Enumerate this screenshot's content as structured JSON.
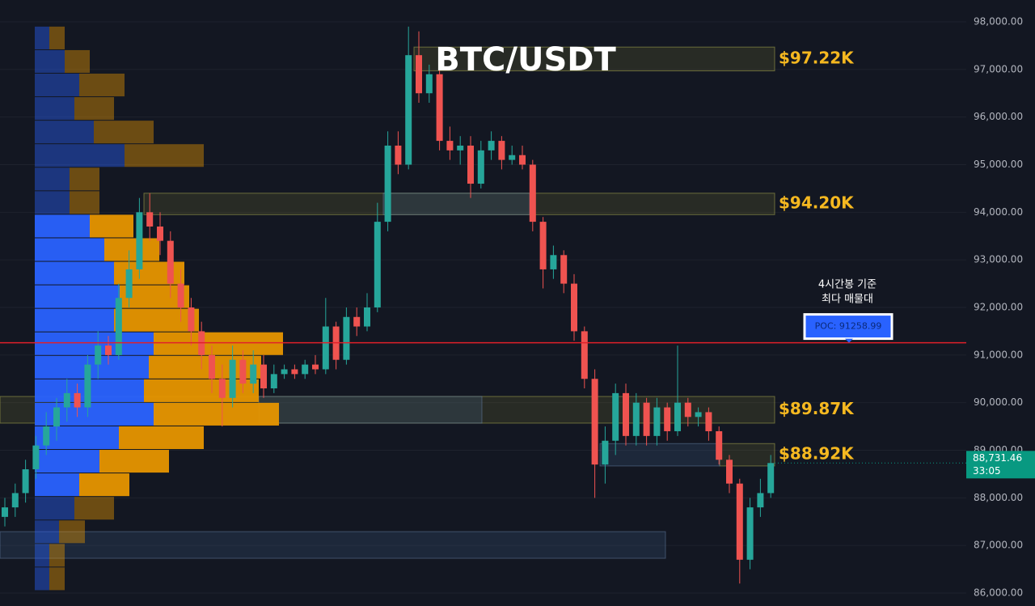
{
  "chart_data": {
    "type": "candlestick",
    "title": "BTC/USDT",
    "ylim": [
      85728,
      98459
    ],
    "yticks": [
      {
        "value": 98000,
        "label": "98,000.00"
      },
      {
        "value": 97000,
        "label": "97,000.00"
      },
      {
        "value": 96000,
        "label": "96,000.00"
      },
      {
        "value": 95000,
        "label": "95,000.00"
      },
      {
        "value": 94000,
        "label": "94,000.00"
      },
      {
        "value": 93000,
        "label": "93,000.00"
      },
      {
        "value": 92000,
        "label": "92,000.00"
      },
      {
        "value": 91000,
        "label": "91,000.00"
      },
      {
        "value": 90000,
        "label": "90,000.00"
      },
      {
        "value": 89000,
        "label": "89,000.00"
      },
      {
        "value": 88000,
        "label": "88,000.00"
      },
      {
        "value": 87000,
        "label": "87,000.00"
      },
      {
        "value": 86000,
        "label": "86,000.00"
      }
    ],
    "grid": true,
    "up_color": "#26a69a",
    "down_color": "#ef5350",
    "open": [
      87600,
      87800,
      88100,
      88600,
      89100,
      89500,
      89900,
      90200,
      89900,
      90800,
      91200,
      91000,
      92200,
      92800,
      94000,
      93700,
      93400,
      92500,
      92000,
      91500,
      91000,
      90500,
      90100,
      90900,
      90400,
      90800,
      90300,
      90600,
      90700,
      90600,
      90800,
      90700,
      91600,
      90900,
      91800,
      91600,
      92000,
      93800,
      95400,
      95000,
      97300,
      96500,
      96900,
      95500,
      95300,
      95400,
      94600,
      95300,
      95500,
      95100,
      95200,
      95000,
      93800,
      92800,
      93100,
      92500,
      91500,
      90500,
      88700,
      89200,
      90200,
      89300,
      90000,
      89300,
      89900,
      89400,
      90000,
      89700,
      89800,
      89400,
      88800,
      88300,
      86700,
      87800,
      88100
    ],
    "high": [
      88000,
      88300,
      88800,
      89300,
      89800,
      90100,
      90500,
      90400,
      91000,
      91500,
      91400,
      92500,
      93200,
      94300,
      94400,
      94000,
      93600,
      92800,
      92200,
      91700,
      91200,
      90800,
      91200,
      91100,
      91100,
      91000,
      90800,
      90800,
      90800,
      90900,
      91000,
      92200,
      91700,
      92000,
      92000,
      92300,
      94200,
      95700,
      95700,
      97900,
      97800,
      97100,
      97000,
      95800,
      95600,
      95600,
      95500,
      95700,
      95600,
      95400,
      95400,
      95100,
      93900,
      93300,
      93200,
      92700,
      91600,
      90700,
      89500,
      90400,
      90400,
      90200,
      90100,
      90100,
      90000,
      91200,
      90100,
      89900,
      89900,
      89500,
      88900,
      88400,
      88000,
      88400,
      88900
    ],
    "low": [
      87400,
      87600,
      87900,
      88400,
      88900,
      89200,
      89600,
      89700,
      89700,
      90500,
      90800,
      90900,
      92000,
      92600,
      93400,
      93100,
      92200,
      91700,
      91200,
      90700,
      90200,
      89500,
      89900,
      90200,
      90200,
      90100,
      90200,
      90500,
      90500,
      90500,
      90600,
      90600,
      90700,
      90800,
      91400,
      91500,
      91900,
      93600,
      94800,
      94900,
      96300,
      96300,
      95300,
      95100,
      95000,
      94300,
      94500,
      95100,
      94900,
      95000,
      94900,
      93600,
      92400,
      92600,
      92300,
      91300,
      90300,
      88000,
      88300,
      88900,
      89100,
      89100,
      89100,
      89100,
      89200,
      89300,
      89500,
      89500,
      89200,
      88700,
      88100,
      86200,
      86500,
      87600,
      88000
    ],
    "close": [
      87800,
      88100,
      88600,
      89100,
      89500,
      89900,
      90200,
      89900,
      90800,
      91200,
      91000,
      92200,
      92800,
      94000,
      93700,
      93400,
      92500,
      92000,
      91500,
      91000,
      90500,
      90100,
      90900,
      90400,
      90800,
      90300,
      90600,
      90700,
      90600,
      90800,
      90700,
      91600,
      90900,
      91800,
      91600,
      92000,
      93800,
      95400,
      95000,
      97300,
      96500,
      96900,
      95500,
      95300,
      95400,
      94600,
      95300,
      95500,
      95100,
      95200,
      95000,
      93800,
      92800,
      93100,
      92500,
      91500,
      90500,
      88700,
      89200,
      90200,
      89300,
      90000,
      89300,
      89900,
      89400,
      90000,
      89700,
      89800,
      89400,
      88800,
      88300,
      86700,
      87800,
      88100,
      88731.46
    ],
    "volume_profile": {
      "bins": [
        97900,
        97406,
        96912,
        96418,
        95924,
        95430,
        94936,
        94442,
        93948,
        93454,
        92960,
        92466,
        91972,
        91478,
        90984,
        90490,
        89996,
        89502,
        89008,
        88514,
        88020,
        87526,
        87032,
        86538,
        86044
      ],
      "buy": [
        18,
        37,
        55,
        49,
        73,
        111,
        43,
        43,
        68,
        86,
        98,
        105,
        98,
        147,
        141,
        135,
        147,
        104,
        80,
        55,
        49,
        30,
        18,
        18
      ],
      "sell": [
        19,
        31,
        56,
        49,
        74,
        98,
        37,
        37,
        54,
        68,
        87,
        86,
        105,
        160,
        139,
        142,
        155,
        105,
        86,
        62,
        49,
        32,
        19,
        19
      ],
      "value_area": [
        88020,
        93948
      ],
      "buy_color": "#2962ff",
      "sell_color": "#e69500"
    },
    "zones": [
      {
        "label": "$97.22K",
        "low": 96970,
        "high": 97470
      },
      {
        "label": "$94.20K",
        "low": 93950,
        "high": 94400
      },
      {
        "label": "$89.87K",
        "low": 89570,
        "high": 90130
      },
      {
        "label": "$88.92K",
        "low": 88670,
        "high": 89140
      }
    ],
    "boxes": [
      {
        "low": 93950,
        "high": 94400
      },
      {
        "low": 89570,
        "high": 90130
      },
      {
        "low": 88670,
        "high": 89140
      },
      {
        "low": 86730,
        "high": 87290
      }
    ],
    "poc": {
      "value": 91258.99,
      "label": "POC: 91258.99"
    },
    "annotation": [
      "4시간봉 기준",
      "최다 매물대"
    ],
    "last_price": {
      "value": 88731.46,
      "label": "88,731.46"
    },
    "countdown": "33:05"
  }
}
